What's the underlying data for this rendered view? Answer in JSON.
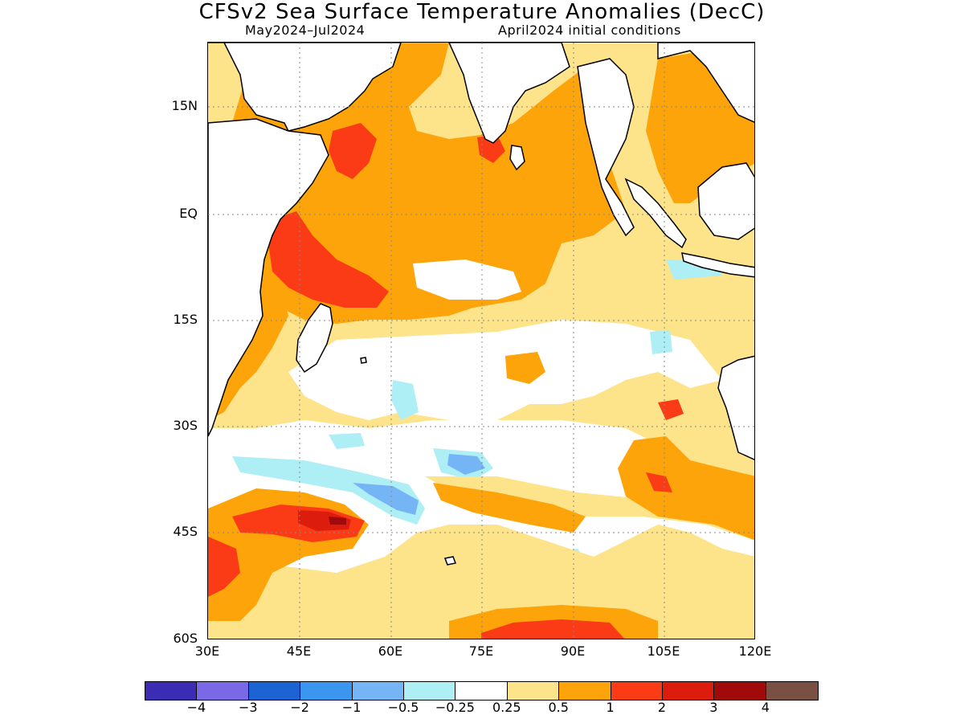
{
  "title": "CFSv2 Sea Surface Temperature Anomalies (DecC)",
  "subtitle_left": "May2024–Jul2024",
  "subtitle_right": "April2024 initial conditions",
  "lat_labels": [
    "15N",
    "EQ",
    "15S",
    "30S",
    "45S",
    "60S"
  ],
  "lon_labels": [
    "30E",
    "45E",
    "60E",
    "75E",
    "90E",
    "105E",
    "120E"
  ],
  "colorbar": {
    "colors": [
      "#3c2bb3",
      "#7a69e6",
      "#1c64d4",
      "#3b96f0",
      "#76b5f5",
      "#aeeef5",
      "#ffffff",
      "#fde38a",
      "#fca40a",
      "#fb3a16",
      "#dc1c0c",
      "#a00a0a",
      "#7a5042"
    ],
    "labels": [
      "−4",
      "−3",
      "−2",
      "−1",
      "−0.5",
      "−0.25",
      "0.25",
      "0.5",
      "1",
      "2",
      "3",
      "4"
    ]
  },
  "map_colors": {
    "weak_pos": "#fde38a",
    "mod_pos": "#fca40a",
    "strong_pos": "#fb3a16",
    "very_strong_pos": "#dc1c0c",
    "extreme_pos": "#a00a0a",
    "weak_neg": "#aeeef5",
    "mod_neg": "#76b5f5",
    "land": "#ffffff",
    "coast": "#000000"
  }
}
